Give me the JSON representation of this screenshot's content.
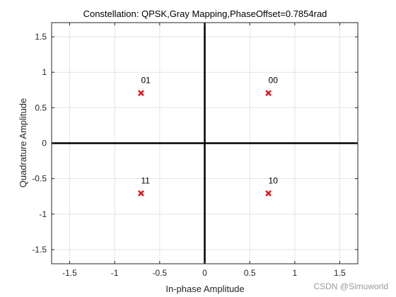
{
  "chart_data": {
    "type": "scatter",
    "title": "Constellation: QPSK,Gray Mapping,PhaseOffset=0.7854rad",
    "xlabel": "In-phase Amplitude",
    "ylabel": "Quadrature Amplitude",
    "xlim": [
      -1.7,
      1.7
    ],
    "ylim": [
      -1.7,
      1.7
    ],
    "xticks": [
      -1.5,
      -1,
      -0.5,
      0,
      0.5,
      1,
      1.5
    ],
    "yticks": [
      -1.5,
      -1,
      -0.5,
      0,
      0.5,
      1,
      1.5
    ],
    "xtick_labels": [
      "-1.5",
      "-1",
      "-0.5",
      "0",
      "0.5",
      "1",
      "1.5"
    ],
    "ytick_labels": [
      "-1.5",
      "-1",
      "-0.5",
      "0",
      "0.5",
      "1",
      "1.5"
    ],
    "grid": true,
    "marker": "x",
    "marker_color": "#e3141b",
    "points": [
      {
        "x": 0.7071,
        "y": 0.7071,
        "label": "00"
      },
      {
        "x": -0.7071,
        "y": 0.7071,
        "label": "01"
      },
      {
        "x": -0.7071,
        "y": -0.7071,
        "label": "11"
      },
      {
        "x": 0.7071,
        "y": -0.7071,
        "label": "10"
      }
    ]
  },
  "watermark": "CSDN @Simuworld"
}
